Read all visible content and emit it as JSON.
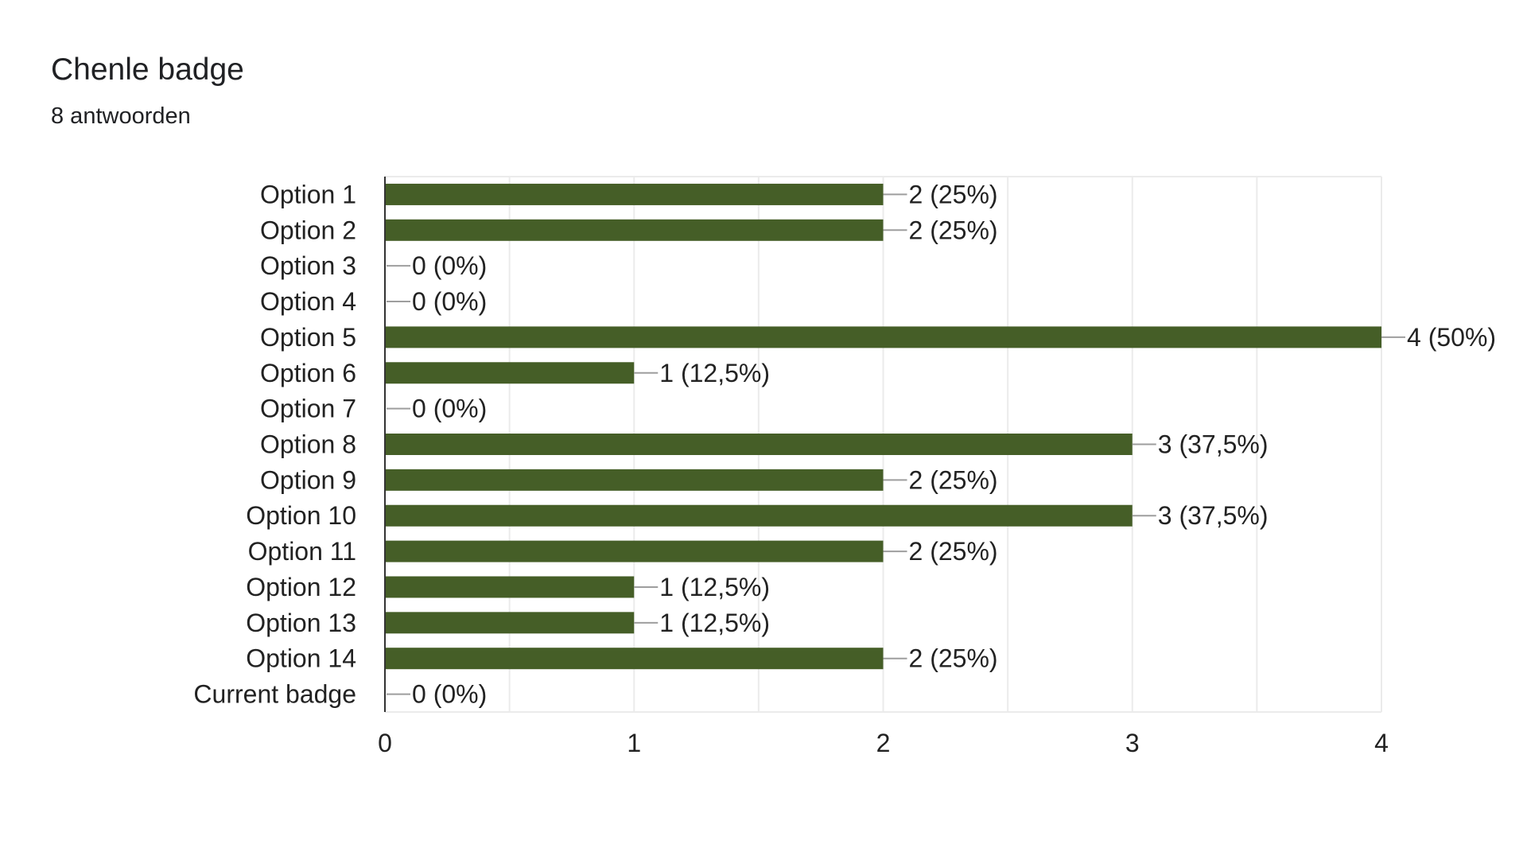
{
  "question": {
    "title": "Chenle badge",
    "response_count": "8 antwoorden"
  },
  "colors": {
    "bar": "#455e27",
    "gridline": "#ebebeb",
    "axis": "#333333",
    "leader": "#9e9e9e",
    "text": "#222222"
  },
  "chart_data": {
    "type": "bar",
    "orientation": "horizontal",
    "title": "Chenle badge",
    "subtitle": "8 antwoorden",
    "xlabel": "",
    "ylabel": "",
    "xlim": [
      0,
      4
    ],
    "x_ticks": [
      0,
      1,
      2,
      3,
      4
    ],
    "grid": true,
    "legend": "none",
    "categories": [
      "Option 1",
      "Option 2",
      "Option 3",
      "Option 4",
      "Option 5",
      "Option 6",
      "Option 7",
      "Option 8",
      "Option 9",
      "Option 10",
      "Option 11",
      "Option 12",
      "Option 13",
      "Option 14",
      "Current badge"
    ],
    "values": [
      2,
      2,
      0,
      0,
      4,
      1,
      0,
      3,
      2,
      3,
      2,
      1,
      1,
      2,
      0
    ],
    "data_labels": [
      "2 (25%)",
      "2 (25%)",
      "0 (0%)",
      "0 (0%)",
      "4 (50%)",
      "1 (12,5%)",
      "0 (0%)",
      "3 (37,5%)",
      "2 (25%)",
      "3 (37,5%)",
      "2 (25%)",
      "1 (12,5%)",
      "1 (12,5%)",
      "2 (25%)",
      "0 (0%)"
    ]
  }
}
